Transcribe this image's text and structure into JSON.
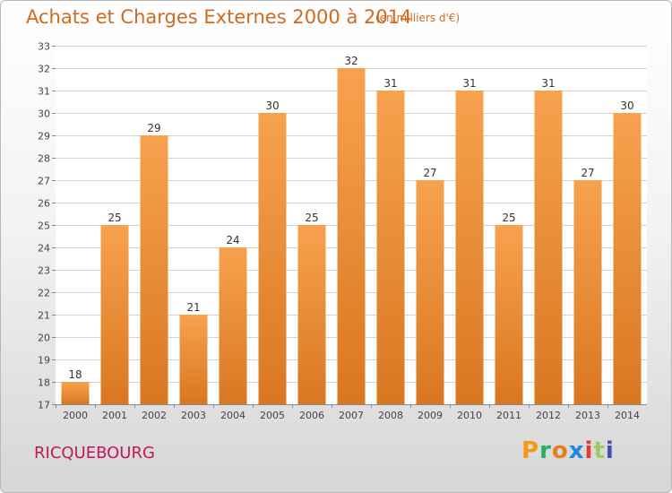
{
  "header": {
    "title": "Achats et Charges Externes 2000 à 2014",
    "subtitle": "(en milliers d'€)"
  },
  "footer": {
    "commune": "RICQUEBOURG",
    "brand": "Proxiti",
    "brand_colors": [
      "#f39c12",
      "#27ae60",
      "#e67e22",
      "#1e88e5",
      "#e53935",
      "#9ccc65",
      "#3f51b5"
    ]
  },
  "colors": {
    "title": "#d2691e",
    "commune": "#c2185b",
    "bar_light": "#f7a24f",
    "bar_dark": "#d9771f",
    "grid": "#d3d3d3"
  },
  "chart_data": {
    "type": "bar",
    "title": "Achats et Charges Externes 2000 à 2014",
    "subtitle": "(en milliers d'€)",
    "categories": [
      "2000",
      "2001",
      "2002",
      "2003",
      "2004",
      "2005",
      "2006",
      "2007",
      "2008",
      "2009",
      "2010",
      "2011",
      "2012",
      "2013",
      "2014"
    ],
    "values": [
      18,
      25,
      29,
      21,
      24,
      30,
      25,
      32,
      31,
      27,
      31,
      25,
      31,
      27,
      30
    ],
    "ylim": [
      17,
      33
    ],
    "yticks": [
      17,
      18,
      19,
      20,
      21,
      22,
      23,
      24,
      25,
      26,
      27,
      28,
      29,
      30,
      31,
      32,
      33
    ],
    "grid": true,
    "data_labels": true
  }
}
